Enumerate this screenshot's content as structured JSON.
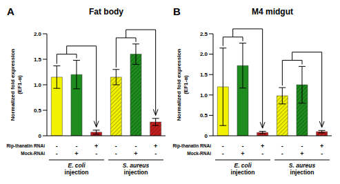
{
  "chart_data": [
    {
      "type": "bar",
      "label": "A",
      "title": "Fat body",
      "y_label": "Normalized fold expression (EF1-α)",
      "categories": [
        null,
        null,
        null,
        null,
        null,
        null
      ],
      "values": [
        1.15,
        1.2,
        0.07,
        1.15,
        1.6,
        0.27
      ],
      "errors": [
        0.22,
        0.28,
        0.04,
        0.15,
        0.2,
        0.07
      ],
      "colors": [
        "#f2f200",
        "#1e8c1e",
        "#c41e1e",
        "#f2f200",
        "#1e8c1e",
        "#c41e1e"
      ],
      "ylim": [
        0,
        2
      ],
      "yticks": [
        0,
        0.5,
        {
          "value": 1,
          "label": "1.0"
        },
        1.5,
        {
          "value": 2,
          "label": "2.0"
        }
      ],
      "grid": false,
      "x_table": [
        {
          "label": "Rip-thanatin RNAi",
          "marks": [
            "-",
            "-",
            "+",
            "-",
            "-",
            "+"
          ]
        },
        {
          "label": "Mock-RNAi",
          "marks": [
            "-",
            "+",
            "-",
            "-",
            "+",
            "-"
          ]
        }
      ],
      "groups": [
        "E. coli injection",
        "S. aureus injection"
      ]
    },
    {
      "type": "bar",
      "label": "B",
      "title": "M4 midgut",
      "y_label": "Normalized fold expression (EF1-α)",
      "categories": [
        null,
        null,
        null,
        null,
        null,
        null
      ],
      "values": [
        1.2,
        1.72,
        0.08,
        0.98,
        1.25,
        0.1
      ],
      "errors": [
        0.95,
        0.55,
        0.03,
        0.2,
        0.45,
        0.03
      ],
      "colors": [
        "#f2f200",
        "#1e8c1e",
        "#c41e1e",
        "#f2f200",
        "#1e8c1e",
        "#c41e1e"
      ],
      "ylim": [
        0,
        2.5
      ],
      "yticks": [
        0,
        0.5,
        {
          "value": 1,
          "label": "1.0"
        },
        1.5,
        {
          "value": 2,
          "label": "2.0"
        },
        2.5
      ],
      "grid": false,
      "x_table": [
        {
          "label": "Rip-thanatin RNAi",
          "marks": [
            "-",
            "-",
            "+",
            "-",
            "-",
            "+"
          ]
        },
        {
          "label": "Mock-RNAi",
          "marks": [
            "-",
            "+",
            "-",
            "-",
            "+",
            "-"
          ]
        }
      ],
      "groups": [
        "E. coli injection",
        "S. aureus injection"
      ]
    }
  ]
}
